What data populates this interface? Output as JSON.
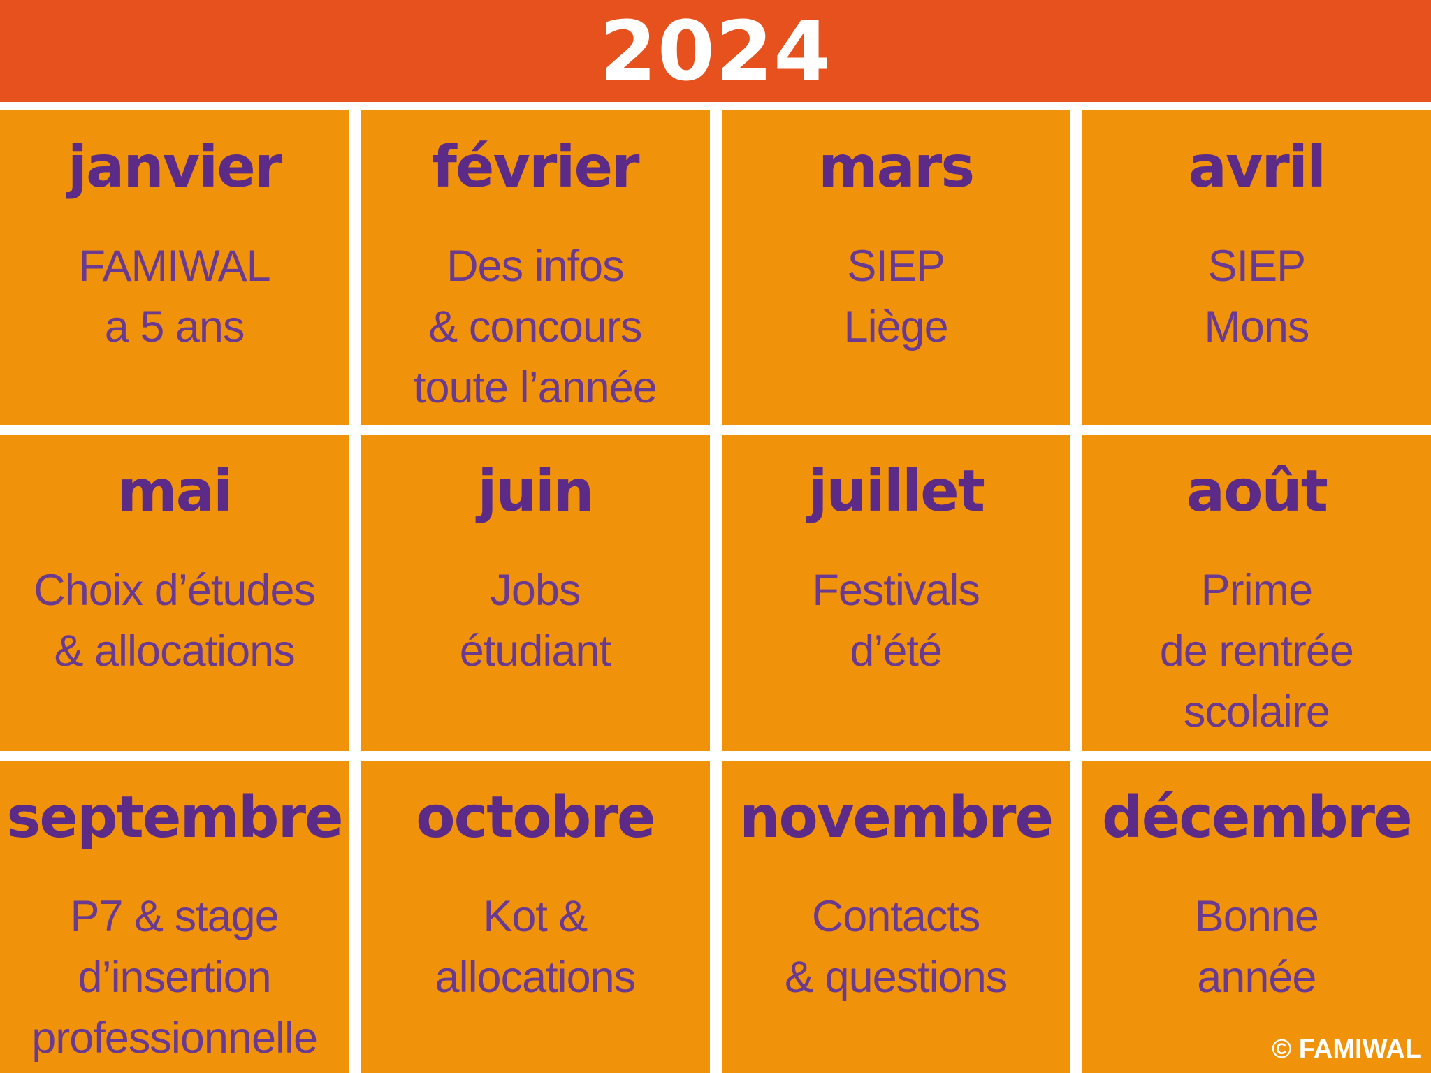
{
  "header": {
    "year": "2024"
  },
  "colors": {
    "header_bg": "#e7511e",
    "cell_bg": "#f0930b",
    "title_color": "#5b2b87",
    "body_color": "#693a90",
    "text_white": "#ffffff"
  },
  "months": [
    {
      "name": "janvier",
      "lines": [
        "FAMIWAL",
        "a 5 ans"
      ]
    },
    {
      "name": "février",
      "lines": [
        "Des infos",
        "& concours",
        "toute l’année"
      ]
    },
    {
      "name": "mars",
      "lines": [
        "SIEP",
        "Liège"
      ]
    },
    {
      "name": "avril",
      "lines": [
        "SIEP",
        "Mons"
      ]
    },
    {
      "name": "mai",
      "lines": [
        "Choix d’études",
        "& allocations"
      ]
    },
    {
      "name": "juin",
      "lines": [
        "Jobs",
        "étudiant"
      ]
    },
    {
      "name": "juillet",
      "lines": [
        "Festivals",
        "d’été"
      ]
    },
    {
      "name": "août",
      "lines": [
        "Prime",
        "de rentrée",
        "scolaire"
      ]
    },
    {
      "name": "septembre",
      "lines": [
        "P7 & stage",
        "d’insertion",
        "professionnelle"
      ]
    },
    {
      "name": "octobre",
      "lines": [
        "Kot &",
        "allocations"
      ]
    },
    {
      "name": "novembre",
      "lines": [
        "Contacts",
        "& questions"
      ]
    },
    {
      "name": "décembre",
      "lines": [
        "Bonne",
        "année"
      ]
    }
  ],
  "footer": {
    "credit": "© FAMIWAL"
  }
}
